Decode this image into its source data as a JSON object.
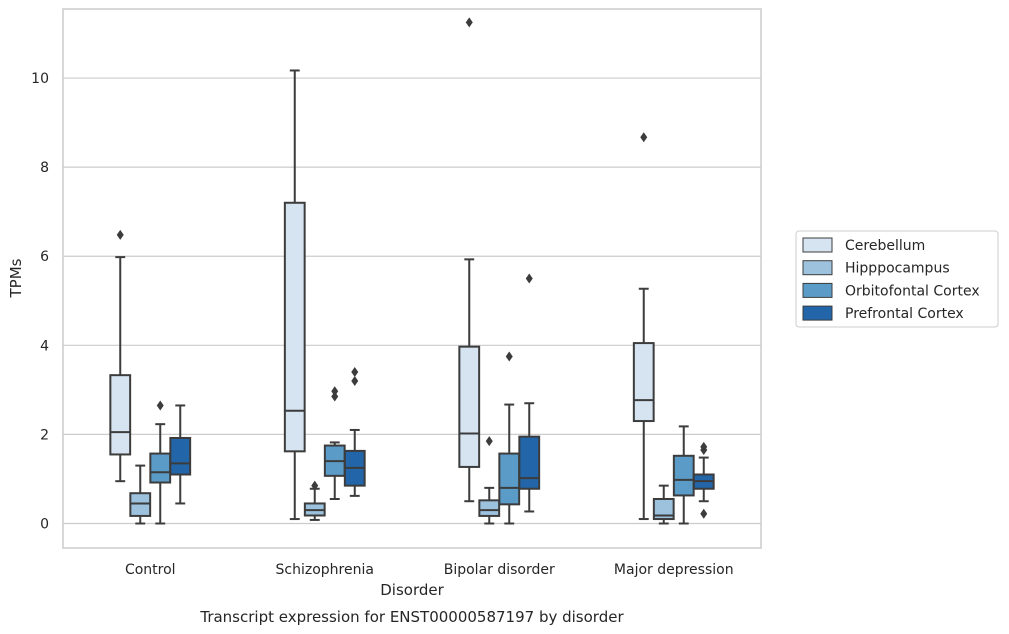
{
  "caption": "Transcript expression for ENST00000587197 by disorder",
  "chart_data": {
    "type": "box",
    "xlabel": "Disorder",
    "ylabel": "TPMs",
    "ylim": [
      -0.55,
      11.55
    ],
    "yticks": [
      0,
      2,
      4,
      6,
      8,
      10
    ],
    "grid": "horizontal",
    "legend_position": "right",
    "categories": [
      "Control",
      "Schizophrenia",
      "Bipolar disorder",
      "Major depression"
    ],
    "series": [
      {
        "name": "Cerebellum",
        "color": "#d6e4f2",
        "boxes": [
          {
            "whisker_low": 0.95,
            "q1": 1.55,
            "median": 2.05,
            "q3": 3.33,
            "whisker_high": 5.98,
            "outliers": [
              6.48
            ]
          },
          {
            "whisker_low": 0.1,
            "q1": 1.62,
            "median": 2.53,
            "q3": 7.2,
            "whisker_high": 10.17,
            "outliers": []
          },
          {
            "whisker_low": 0.5,
            "q1": 1.27,
            "median": 2.02,
            "q3": 3.97,
            "whisker_high": 5.93,
            "outliers": [
              11.25
            ]
          },
          {
            "whisker_low": 0.1,
            "q1": 2.3,
            "median": 2.77,
            "q3": 4.05,
            "whisker_high": 5.27,
            "outliers": [
              8.67
            ]
          }
        ]
      },
      {
        "name": "Hipppocampus",
        "color": "#9dc2de",
        "boxes": [
          {
            "whisker_low": 0.0,
            "q1": 0.17,
            "median": 0.45,
            "q3": 0.68,
            "whisker_high": 1.3,
            "outliers": []
          },
          {
            "whisker_low": 0.08,
            "q1": 0.18,
            "median": 0.3,
            "q3": 0.45,
            "whisker_high": 0.78,
            "outliers": [
              0.85
            ]
          },
          {
            "whisker_low": 0.0,
            "q1": 0.17,
            "median": 0.3,
            "q3": 0.52,
            "whisker_high": 0.8,
            "outliers": [
              1.85
            ]
          },
          {
            "whisker_low": 0.0,
            "q1": 0.1,
            "median": 0.18,
            "q3": 0.55,
            "whisker_high": 0.85,
            "outliers": []
          }
        ]
      },
      {
        "name": "Orbitofontal Cortex",
        "color": "#5a9bc8",
        "boxes": [
          {
            "whisker_low": 0.0,
            "q1": 0.92,
            "median": 1.15,
            "q3": 1.57,
            "whisker_high": 2.23,
            "outliers": [
              2.65
            ]
          },
          {
            "whisker_low": 0.55,
            "q1": 1.07,
            "median": 1.4,
            "q3": 1.75,
            "whisker_high": 1.82,
            "outliers": [
              2.85,
              2.97
            ]
          },
          {
            "whisker_low": 0.0,
            "q1": 0.43,
            "median": 0.8,
            "q3": 1.57,
            "whisker_high": 2.67,
            "outliers": [
              3.75
            ]
          },
          {
            "whisker_low": 0.0,
            "q1": 0.63,
            "median": 0.98,
            "q3": 1.52,
            "whisker_high": 2.18,
            "outliers": []
          }
        ]
      },
      {
        "name": "Prefrontal Cortex",
        "color": "#2265a8",
        "boxes": [
          {
            "whisker_low": 0.45,
            "q1": 1.1,
            "median": 1.35,
            "q3": 1.92,
            "whisker_high": 2.65,
            "outliers": []
          },
          {
            "whisker_low": 0.62,
            "q1": 0.85,
            "median": 1.25,
            "q3": 1.63,
            "whisker_high": 2.1,
            "outliers": [
              3.2,
              3.4
            ]
          },
          {
            "whisker_low": 0.27,
            "q1": 0.78,
            "median": 1.02,
            "q3": 1.95,
            "whisker_high": 2.7,
            "outliers": [
              5.5
            ]
          },
          {
            "whisker_low": 0.5,
            "q1": 0.78,
            "median": 0.95,
            "q3": 1.1,
            "whisker_high": 1.48,
            "outliers": [
              0.22,
              1.65,
              1.72
            ]
          }
        ]
      }
    ]
  }
}
